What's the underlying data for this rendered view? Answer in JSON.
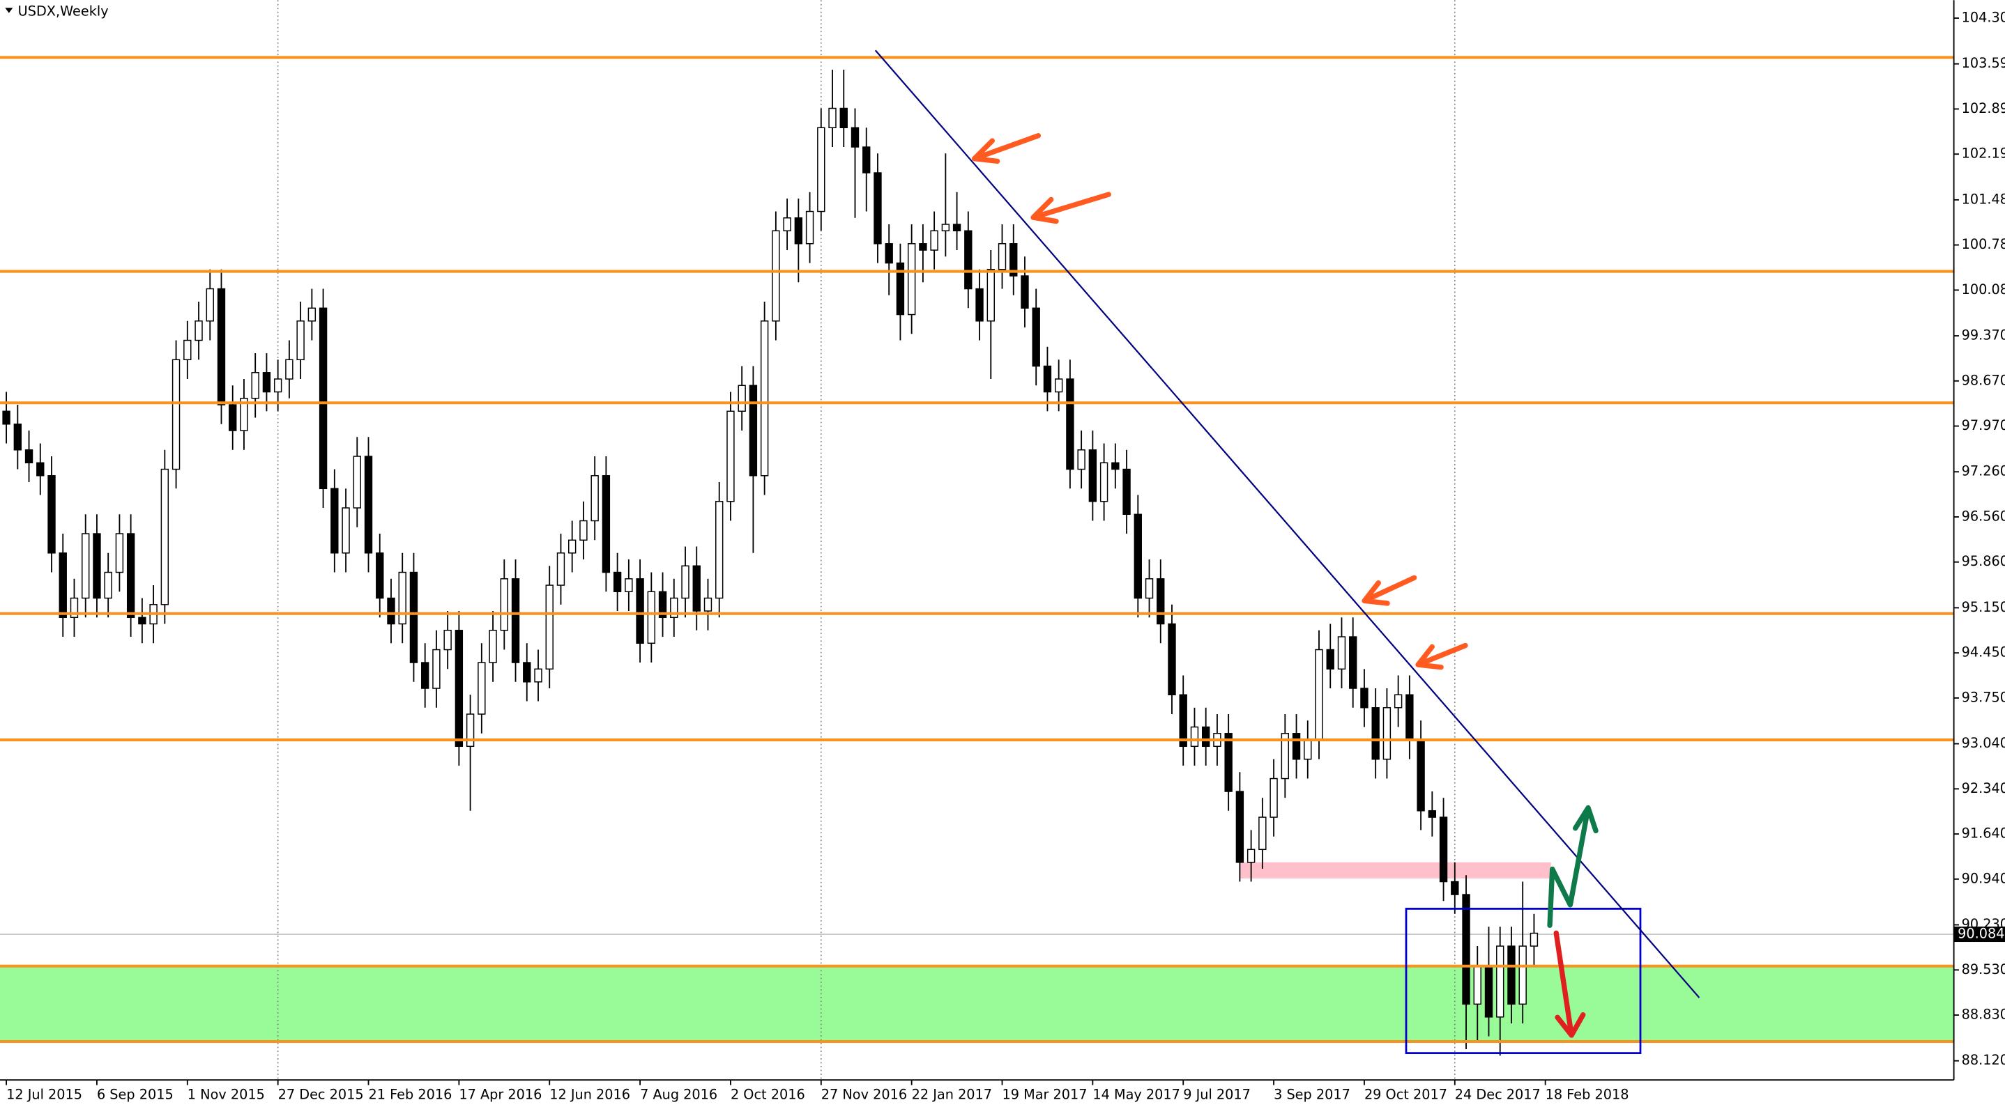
{
  "chart_data": {
    "type": "candlestick",
    "title": "USDX,Weekly",
    "ylim": [
      87.823,
      104.578
    ],
    "xlim": [
      -0.56,
      172.1
    ],
    "yticks": [
      {
        "value": 104.3,
        "label": "104.300"
      },
      {
        "value": 103.59,
        "label": "103.590"
      },
      {
        "value": 102.89,
        "label": "102.890"
      },
      {
        "value": 102.19,
        "label": "102.190"
      },
      {
        "value": 101.48,
        "label": "101.480"
      },
      {
        "value": 100.78,
        "label": "100.780"
      },
      {
        "value": 100.08,
        "label": "100.080"
      },
      {
        "value": 99.37,
        "label": "99.370"
      },
      {
        "value": 98.67,
        "label": "98.670"
      },
      {
        "value": 97.97,
        "label": "97.970"
      },
      {
        "value": 97.26,
        "label": "97.260"
      },
      {
        "value": 96.56,
        "label": "96.560"
      },
      {
        "value": 95.86,
        "label": "95.860"
      },
      {
        "value": 95.15,
        "label": "95.150"
      },
      {
        "value": 94.45,
        "label": "94.450"
      },
      {
        "value": 93.75,
        "label": "93.750"
      },
      {
        "value": 93.04,
        "label": "93.040"
      },
      {
        "value": 92.34,
        "label": "92.340"
      },
      {
        "value": 91.64,
        "label": "91.640"
      },
      {
        "value": 90.94,
        "label": "90.940"
      },
      {
        "value": 90.23,
        "label": "90.230"
      },
      {
        "value": 89.53,
        "label": "89.530"
      },
      {
        "value": 88.83,
        "label": "88.830"
      },
      {
        "value": 88.12,
        "label": "88.120"
      }
    ],
    "xticks": [
      {
        "value": 0,
        "label": "12 Jul 2015"
      },
      {
        "value": 8,
        "label": "6 Sep 2015"
      },
      {
        "value": 16,
        "label": "1 Nov 2015"
      },
      {
        "value": 24,
        "label": "27 Dec 2015"
      },
      {
        "value": 32,
        "label": "21 Feb 2016"
      },
      {
        "value": 40,
        "label": "17 Apr 2016"
      },
      {
        "value": 48,
        "label": "12 Jun 2016"
      },
      {
        "value": 56,
        "label": "7 Aug 2016"
      },
      {
        "value": 64,
        "label": "2 Oct 2016"
      },
      {
        "value": 72,
        "label": "27 Nov 2016"
      },
      {
        "value": 80,
        "label": "22 Jan 2017"
      },
      {
        "value": 88,
        "label": "19 Mar 2017"
      },
      {
        "value": 96,
        "label": "14 May 2017"
      },
      {
        "value": 104,
        "label": "9 Jul 2017"
      },
      {
        "value": 112,
        "label": "3 Sep 2017"
      },
      {
        "value": 120,
        "label": "29 Oct 2017"
      },
      {
        "value": 128,
        "label": "24 Dec 2017"
      },
      {
        "value": 136,
        "label": "18 Feb 2018"
      }
    ],
    "grid_xticks": [
      3,
      9,
      16
    ],
    "up_color": "#ffffff",
    "down_color": "#000000",
    "ohlc": [
      [
        98.2,
        98.5,
        97.7,
        98.0
      ],
      [
        98.0,
        98.3,
        97.3,
        97.6
      ],
      [
        97.6,
        97.9,
        97.1,
        97.4
      ],
      [
        97.4,
        97.7,
        96.9,
        97.2
      ],
      [
        97.2,
        97.5,
        95.7,
        96.0
      ],
      [
        96.0,
        96.3,
        94.7,
        95.0
      ],
      [
        95.0,
        95.6,
        94.7,
        95.3
      ],
      [
        95.3,
        96.6,
        95.0,
        96.3
      ],
      [
        96.3,
        96.6,
        95.0,
        95.3
      ],
      [
        95.3,
        96.0,
        95.0,
        95.7
      ],
      [
        95.7,
        96.6,
        95.4,
        96.3
      ],
      [
        96.3,
        96.6,
        94.7,
        95.0
      ],
      [
        95.0,
        95.3,
        94.6,
        94.9
      ],
      [
        94.9,
        95.5,
        94.6,
        95.2
      ],
      [
        95.2,
        97.6,
        94.9,
        97.3
      ],
      [
        97.3,
        99.3,
        97.0,
        99.0
      ],
      [
        99.0,
        99.6,
        98.7,
        99.3
      ],
      [
        99.3,
        99.9,
        99.0,
        99.6
      ],
      [
        99.6,
        100.4,
        99.3,
        100.1
      ],
      [
        100.1,
        100.4,
        98.0,
        98.3
      ],
      [
        98.3,
        98.6,
        97.6,
        97.9
      ],
      [
        97.9,
        98.7,
        97.6,
        98.4
      ],
      [
        98.4,
        99.1,
        98.1,
        98.8
      ],
      [
        98.8,
        99.1,
        98.2,
        98.5
      ],
      [
        98.5,
        99.0,
        98.2,
        98.7
      ],
      [
        98.7,
        99.3,
        98.4,
        99.0
      ],
      [
        99.0,
        99.9,
        98.7,
        99.6
      ],
      [
        99.6,
        100.1,
        99.3,
        99.8
      ],
      [
        99.8,
        100.1,
        96.7,
        97.0
      ],
      [
        97.0,
        97.3,
        95.7,
        96.0
      ],
      [
        96.0,
        97.0,
        95.7,
        96.7
      ],
      [
        96.7,
        97.8,
        96.4,
        97.5
      ],
      [
        97.5,
        97.8,
        95.7,
        96.0
      ],
      [
        96.0,
        96.3,
        95.0,
        95.3
      ],
      [
        95.3,
        95.6,
        94.6,
        94.9
      ],
      [
        94.9,
        96.0,
        94.6,
        95.7
      ],
      [
        95.7,
        96.0,
        94.0,
        94.3
      ],
      [
        94.3,
        94.6,
        93.6,
        93.9
      ],
      [
        93.9,
        94.8,
        93.6,
        94.5
      ],
      [
        94.5,
        95.1,
        94.2,
        94.8
      ],
      [
        94.8,
        95.1,
        92.7,
        93.0
      ],
      [
        93.0,
        93.8,
        92.0,
        93.5
      ],
      [
        93.5,
        94.6,
        93.2,
        94.3
      ],
      [
        94.3,
        95.1,
        94.0,
        94.8
      ],
      [
        94.8,
        95.9,
        94.5,
        95.6
      ],
      [
        95.6,
        95.9,
        94.0,
        94.3
      ],
      [
        94.3,
        94.6,
        93.7,
        94.0
      ],
      [
        94.0,
        94.5,
        93.7,
        94.2
      ],
      [
        94.2,
        95.8,
        93.9,
        95.5
      ],
      [
        95.5,
        96.3,
        95.2,
        96.0
      ],
      [
        96.0,
        96.5,
        95.7,
        96.2
      ],
      [
        96.2,
        96.8,
        95.9,
        96.5
      ],
      [
        96.5,
        97.5,
        96.2,
        97.2
      ],
      [
        97.2,
        97.5,
        95.4,
        95.7
      ],
      [
        95.7,
        96.0,
        95.1,
        95.4
      ],
      [
        95.4,
        95.9,
        95.1,
        95.6
      ],
      [
        95.6,
        95.9,
        94.3,
        94.6
      ],
      [
        94.6,
        95.7,
        94.3,
        95.4
      ],
      [
        95.4,
        95.7,
        94.7,
        95.0
      ],
      [
        95.0,
        95.6,
        94.7,
        95.3
      ],
      [
        95.3,
        96.1,
        95.0,
        95.8
      ],
      [
        95.8,
        96.1,
        94.8,
        95.1
      ],
      [
        95.1,
        95.6,
        94.8,
        95.3
      ],
      [
        95.3,
        97.1,
        95.0,
        96.8
      ],
      [
        96.8,
        98.5,
        96.5,
        98.2
      ],
      [
        98.2,
        98.9,
        97.9,
        98.6
      ],
      [
        98.6,
        98.9,
        96.0,
        97.2
      ],
      [
        97.2,
        99.9,
        96.9,
        99.6
      ],
      [
        99.6,
        101.3,
        99.3,
        101.0
      ],
      [
        101.0,
        101.5,
        100.7,
        101.2
      ],
      [
        101.2,
        101.5,
        100.2,
        100.8
      ],
      [
        100.8,
        101.6,
        100.5,
        101.3
      ],
      [
        101.3,
        102.9,
        101.0,
        102.6
      ],
      [
        102.6,
        103.5,
        102.3,
        102.9
      ],
      [
        102.9,
        103.5,
        102.3,
        102.6
      ],
      [
        102.6,
        102.9,
        101.2,
        102.3
      ],
      [
        102.3,
        102.6,
        101.3,
        101.9
      ],
      [
        101.9,
        102.2,
        100.5,
        100.8
      ],
      [
        100.8,
        101.1,
        100.0,
        100.5
      ],
      [
        100.5,
        100.8,
        99.3,
        99.7
      ],
      [
        99.7,
        101.1,
        99.4,
        100.8
      ],
      [
        100.8,
        101.1,
        100.2,
        100.7
      ],
      [
        100.7,
        101.3,
        100.4,
        101.0
      ],
      [
        101.0,
        102.2,
        100.6,
        101.1
      ],
      [
        101.1,
        101.6,
        100.7,
        101.0
      ],
      [
        101.0,
        101.3,
        99.8,
        100.1
      ],
      [
        100.1,
        100.4,
        99.3,
        99.6
      ],
      [
        99.6,
        100.7,
        98.7,
        100.4
      ],
      [
        100.4,
        101.1,
        100.1,
        100.8
      ],
      [
        100.8,
        101.1,
        100.0,
        100.3
      ],
      [
        100.3,
        100.6,
        99.5,
        99.8
      ],
      [
        99.8,
        100.1,
        98.6,
        98.9
      ],
      [
        98.9,
        99.2,
        98.2,
        98.5
      ],
      [
        98.5,
        99.0,
        98.2,
        98.7
      ],
      [
        98.7,
        99.0,
        97.0,
        97.3
      ],
      [
        97.3,
        97.9,
        97.0,
        97.6
      ],
      [
        97.6,
        97.9,
        96.5,
        96.8
      ],
      [
        96.8,
        97.7,
        96.5,
        97.4
      ],
      [
        97.4,
        97.7,
        97.0,
        97.3
      ],
      [
        97.3,
        97.6,
        96.3,
        96.6
      ],
      [
        96.6,
        96.9,
        95.0,
        95.3
      ],
      [
        95.3,
        95.9,
        95.0,
        95.6
      ],
      [
        95.6,
        95.9,
        94.6,
        94.9
      ],
      [
        94.9,
        95.2,
        93.5,
        93.8
      ],
      [
        93.8,
        94.1,
        92.7,
        93.0
      ],
      [
        93.0,
        93.6,
        92.7,
        93.3
      ],
      [
        93.3,
        93.6,
        92.7,
        93.0
      ],
      [
        93.0,
        93.5,
        92.7,
        93.2
      ],
      [
        93.2,
        93.5,
        92.0,
        92.3
      ],
      [
        92.3,
        92.6,
        90.9,
        91.2
      ],
      [
        91.2,
        91.7,
        90.9,
        91.4
      ],
      [
        91.4,
        92.2,
        91.1,
        91.9
      ],
      [
        91.9,
        92.8,
        91.6,
        92.5
      ],
      [
        92.5,
        93.5,
        92.2,
        93.2
      ],
      [
        93.2,
        93.5,
        92.5,
        92.8
      ],
      [
        92.8,
        93.4,
        92.5,
        93.1
      ],
      [
        93.1,
        94.8,
        92.8,
        94.5
      ],
      [
        94.5,
        94.9,
        93.9,
        94.2
      ],
      [
        94.2,
        95.0,
        93.9,
        94.7
      ],
      [
        94.7,
        95.0,
        93.6,
        93.9
      ],
      [
        93.9,
        94.2,
        93.3,
        93.6
      ],
      [
        93.6,
        93.9,
        92.5,
        92.8
      ],
      [
        92.8,
        93.9,
        92.5,
        93.6
      ],
      [
        93.6,
        94.1,
        93.3,
        93.8
      ],
      [
        93.8,
        94.1,
        92.8,
        93.1
      ],
      [
        93.1,
        93.4,
        91.7,
        92.0
      ],
      [
        92.0,
        92.3,
        91.6,
        91.9
      ],
      [
        91.9,
        92.2,
        90.6,
        90.9
      ],
      [
        90.9,
        91.2,
        90.4,
        90.7
      ],
      [
        90.7,
        91.0,
        88.3,
        89.0
      ],
      [
        89.0,
        89.9,
        88.4,
        89.6
      ],
      [
        89.6,
        90.2,
        88.5,
        88.8
      ],
      [
        88.8,
        90.2,
        88.2,
        89.9
      ],
      [
        89.9,
        90.2,
        88.7,
        89.0
      ],
      [
        89.0,
        90.9,
        88.7,
        89.9
      ],
      [
        89.9,
        90.4,
        89.6,
        90.1
      ]
    ],
    "levels": [
      103.69,
      100.37,
      98.33,
      95.06,
      93.1,
      89.59,
      88.42
    ],
    "level_color": "#f7931e",
    "zone": {
      "y": [
        88.42,
        89.59
      ],
      "color": "#98fb98"
    },
    "last_price": 90.084,
    "trendline": {
      "x": [
        76.8,
        149.6
      ],
      "y": [
        103.8,
        89.1
      ],
      "color": "#000080"
    },
    "boxes": [
      {
        "x": [
          109,
          136.5
        ],
        "y": [
          90.95,
          91.2
        ],
        "color": "#ffc0cb",
        "filled": true
      },
      {
        "x": [
          123.7,
          144.4
        ],
        "y": [
          88.24,
          90.48
        ],
        "color": "#0000cd",
        "filled": false
      }
    ]
  }
}
